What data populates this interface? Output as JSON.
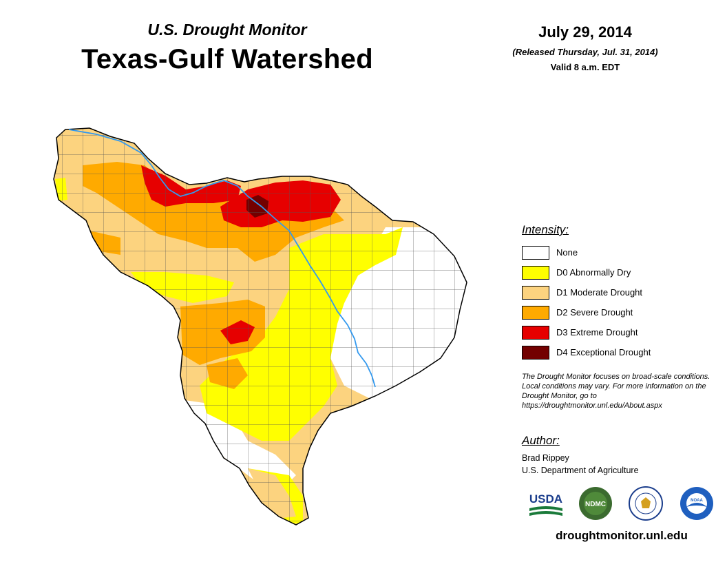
{
  "header": {
    "subtitle": "U.S. Drought Monitor",
    "title": "Texas-Gulf Watershed",
    "date": "July 29, 2014",
    "released": "(Released Thursday, Jul. 31, 2014)",
    "valid": "Valid 8 a.m. EDT"
  },
  "legend": {
    "title": "Intensity:",
    "items": [
      {
        "label": "None",
        "color": "#ffffff"
      },
      {
        "label": "D0 Abnormally Dry",
        "color": "#ffff00"
      },
      {
        "label": "D1 Moderate Drought",
        "color": "#fcd37f"
      },
      {
        "label": "D2 Severe Drought",
        "color": "#ffaa00"
      },
      {
        "label": "D3 Extreme Drought",
        "color": "#e60000"
      },
      {
        "label": "D4 Exceptional Drought",
        "color": "#730000"
      }
    ]
  },
  "note": "The Drought Monitor focuses on broad-scale conditions. Local conditions may vary. For more information on the Drought Monitor, go to https://droughtmonitor.unl.edu/About.aspx",
  "author": {
    "title": "Author:",
    "name": "Brad Rippey",
    "org": "U.S. Department of Agriculture"
  },
  "logos": {
    "usda": "USDA",
    "ndmc": "NDMC",
    "noaa": "NOAA"
  },
  "website": "droughtmonitor.unl.edu",
  "colors": {
    "river": "#3399ee",
    "county_lines": "#555555",
    "outline": "#000000"
  }
}
